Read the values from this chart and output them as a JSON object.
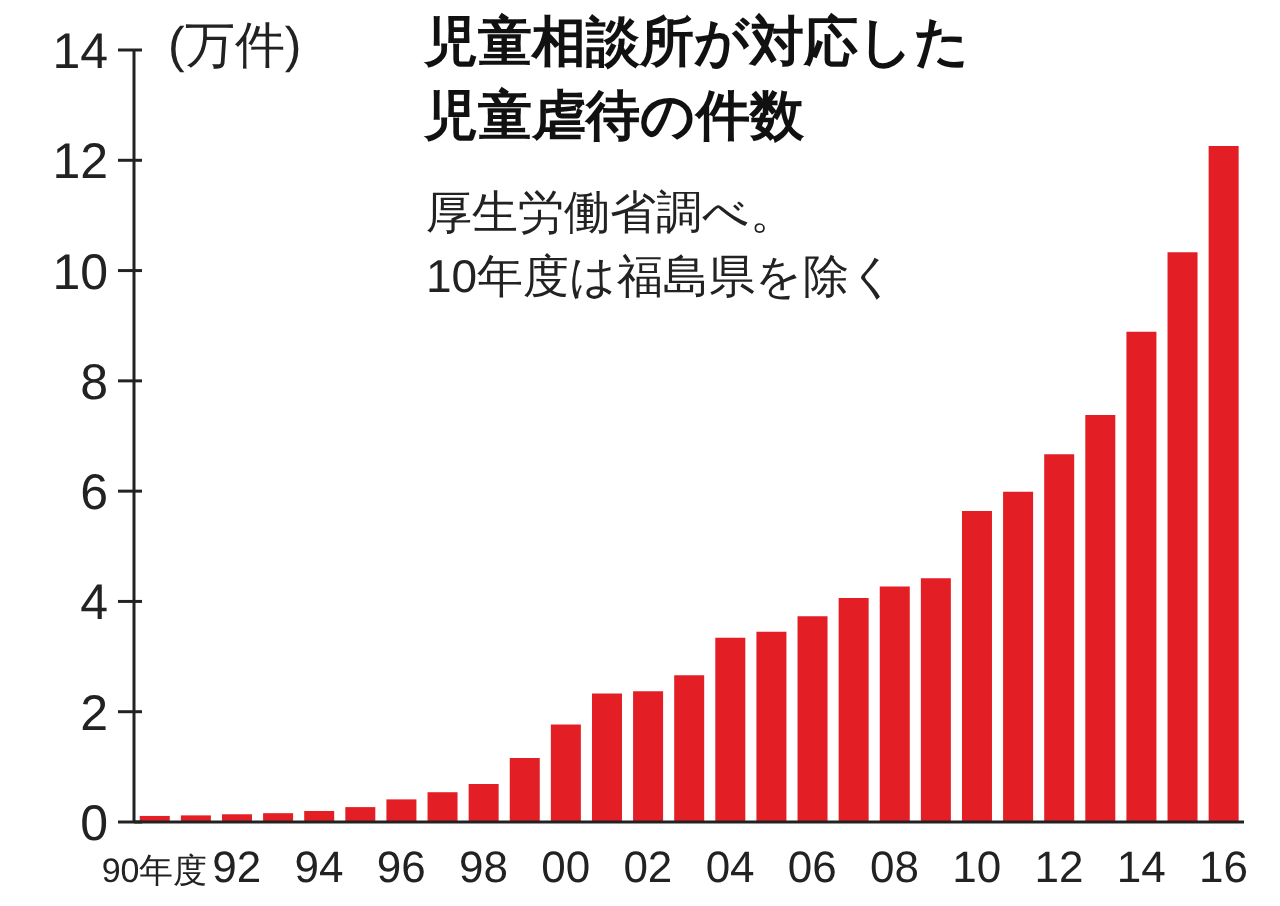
{
  "chart_data": {
    "type": "bar",
    "title": "児童相談所が対応した児童虐待の件数",
    "ylabel": "(万件)",
    "annotations": [
      "厚生労働省調べ。",
      "10年度は福島県を除く"
    ],
    "categories": [
      "90年度",
      null,
      "92",
      null,
      "94",
      null,
      "96",
      null,
      "98",
      null,
      "00",
      null,
      "02",
      null,
      "04",
      null,
      "06",
      null,
      "08",
      null,
      "10",
      null,
      "12",
      null,
      "14",
      null,
      "16"
    ],
    "values": [
      0.11,
      0.12,
      0.14,
      0.16,
      0.2,
      0.27,
      0.41,
      0.54,
      0.69,
      1.16,
      1.77,
      2.33,
      2.37,
      2.66,
      3.34,
      3.45,
      3.73,
      4.06,
      4.27,
      4.42,
      5.64,
      5.99,
      6.67,
      7.38,
      8.89,
      10.33,
      12.26
    ],
    "color": "#e31e24",
    "ylim": [
      0,
      14
    ],
    "yticks": [
      0,
      2,
      4,
      6,
      8,
      10,
      12,
      14
    ],
    "grid": false,
    "legend": false
  }
}
